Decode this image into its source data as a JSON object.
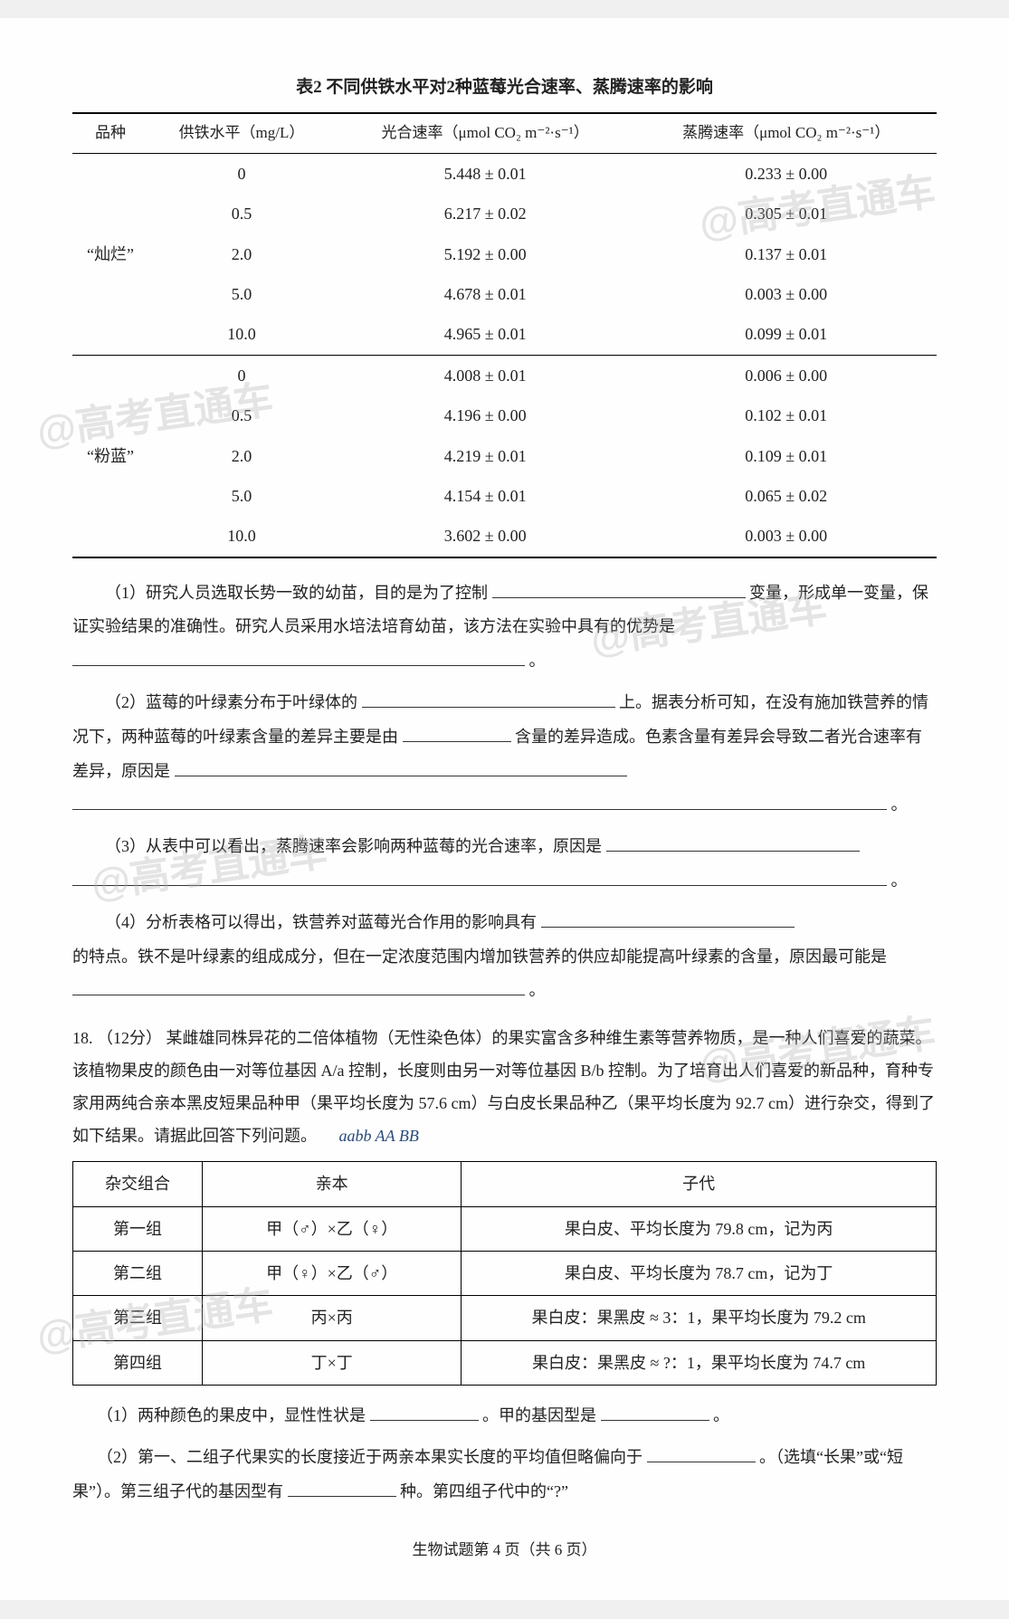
{
  "table2": {
    "title": "表2  不同供铁水平对2种蓝莓光合速率、蒸腾速率的影响",
    "headers": {
      "variety": "品种",
      "iron": "供铁水平（mg/L）",
      "photo": "光合速率（μmol CO₂ m⁻²·s⁻¹）",
      "trans": "蒸腾速率（μmol CO₂ m⁻²·s⁻¹）"
    },
    "varieties": [
      {
        "name": "“灿烂”",
        "rows": [
          {
            "iron": "0",
            "photo": "5.448 ± 0.01",
            "trans": "0.233 ± 0.00"
          },
          {
            "iron": "0.5",
            "photo": "6.217 ± 0.02",
            "trans": "0.305 ± 0.01"
          },
          {
            "iron": "2.0",
            "photo": "5.192 ± 0.00",
            "trans": "0.137 ± 0.01"
          },
          {
            "iron": "5.0",
            "photo": "4.678 ± 0.01",
            "trans": "0.003 ± 0.00"
          },
          {
            "iron": "10.0",
            "photo": "4.965 ± 0.01",
            "trans": "0.099 ± 0.01"
          }
        ]
      },
      {
        "name": "“粉蓝”",
        "rows": [
          {
            "iron": "0",
            "photo": "4.008 ± 0.01",
            "trans": "0.006 ± 0.00"
          },
          {
            "iron": "0.5",
            "photo": "4.196 ± 0.00",
            "trans": "0.102 ± 0.01"
          },
          {
            "iron": "2.0",
            "photo": "4.219 ± 0.01",
            "trans": "0.109 ± 0.01"
          },
          {
            "iron": "5.0",
            "photo": "4.154 ± 0.01",
            "trans": "0.065 ± 0.02"
          },
          {
            "iron": "10.0",
            "photo": "3.602 ± 0.00",
            "trans": "0.003 ± 0.00"
          }
        ]
      }
    ]
  },
  "q1": {
    "part1": "（1）研究人员选取长势一致的幼苗，目的是为了控制",
    "part2": "变量，形成单一变量，保证实验结果的准确性。研究人员采用水培法培育幼苗，该方法在实验中具有的优势是",
    "end": "。"
  },
  "q2": {
    "part1": "（2）蓝莓的叶绿素分布于叶绿体的",
    "part2": "上。据表分析可知，在没有施加铁营养的情况下，两种蓝莓的叶绿素含量的差异主要是由",
    "part3": "含量的差异造成。色素含量有差异会导致二者光合速率有差异，原因是",
    "end": "。"
  },
  "q3": {
    "part1": "（3）从表中可以看出，蒸腾速率会影响两种蓝莓的光合速率，原因是",
    "end": "。"
  },
  "q4": {
    "part1": "（4）分析表格可以得出，铁营养对蓝莓光合作用的影响具有",
    "part2": "的特点。铁不是叶绿素的组成成分，但在一定浓度范围内增加铁营养的供应却能提高叶绿素的含量，原因最可能是",
    "end": "。"
  },
  "q18": {
    "number": "18.",
    "points": "（12分）",
    "intro": "某雌雄同株异花的二倍体植物（无性染色体）的果实富含多种维生素等营养物质，是一种人们喜爱的蔬菜。该植物果皮的颜色由一对等位基因 A/a 控制，长度则由另一对等位基因 B/b 控制。为了培育出人们喜爱的新品种，育种专家用两纯合亲本黑皮短果品种甲（果平均长度为 57.6 cm）与白皮长果品种乙（果平均长度为 92.7 cm）进行杂交，得到了如下结果。请据此回答下列问题。",
    "handwritten": "aabb      AA BB",
    "crossTable": {
      "headers": {
        "group": "杂交组合",
        "parents": "亲本",
        "offspring": "子代"
      },
      "rows": [
        {
          "group": "第一组",
          "parents": "甲（♂）×乙（♀）",
          "offspring": "果白皮、平均长度为 79.8 cm，记为丙"
        },
        {
          "group": "第二组",
          "parents": "甲（♀）×乙（♂）",
          "offspring": "果白皮、平均长度为 78.7 cm，记为丁"
        },
        {
          "group": "第三组",
          "parents": "丙×丙",
          "offspring": "果白皮：果黑皮 ≈ 3：1，果平均长度为 79.2 cm"
        },
        {
          "group": "第四组",
          "parents": "丁×丁",
          "offspring": "果白皮：果黑皮 ≈ ?：1，果平均长度为 74.7 cm"
        }
      ]
    },
    "sub1": {
      "part1": "（1）两种颜色的果皮中，显性性状是",
      "part2": "。甲的基因型是",
      "end": "。"
    },
    "sub2": {
      "part1": "（2）第一、二组子代果实的长度接近于两亲本果实长度的平均值但略偏向于",
      "part2": "。（选填“长果”或“短果”）。第三组子代的基因型有",
      "part3": "种。第四组子代中的“?”"
    }
  },
  "footer": "生物试题第 4 页（共 6 页）",
  "watermark": "@高考直通车"
}
